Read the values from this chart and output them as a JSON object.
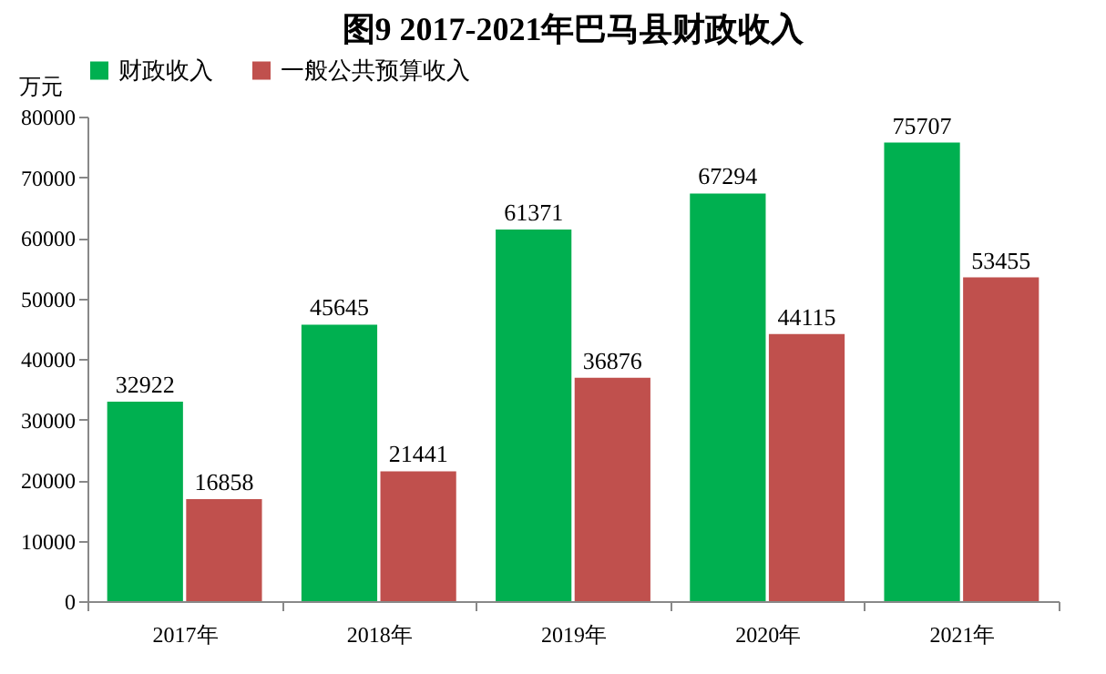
{
  "chart_data": {
    "type": "bar",
    "title": "图9  2017-2021年巴马县财政收入",
    "ylabel": "万元",
    "categories": [
      "2017年",
      "2018年",
      "2019年",
      "2020年",
      "2021年"
    ],
    "series": [
      {
        "name": "财政收入",
        "color": "#00b050",
        "values": [
          32922,
          45645,
          61371,
          67294,
          75707
        ]
      },
      {
        "name": "一般公共预算收入",
        "color": "#c0504d",
        "values": [
          16858,
          21441,
          36876,
          44115,
          53455
        ]
      }
    ],
    "ylim": [
      0,
      80000
    ],
    "yticks": [
      0,
      10000,
      20000,
      30000,
      40000,
      50000,
      60000,
      70000,
      80000
    ],
    "grid": false,
    "legend": "top",
    "data_labels": true
  }
}
